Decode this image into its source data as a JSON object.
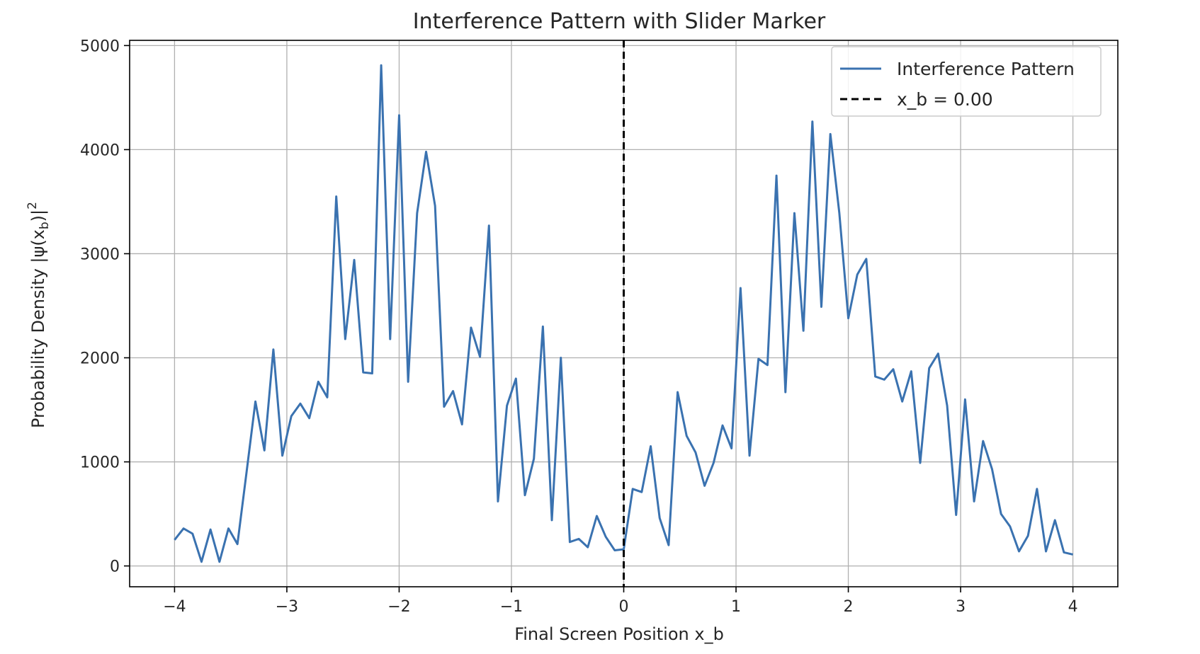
{
  "chart_data": {
    "type": "line",
    "title": "Interference Pattern with Slider Marker",
    "xlabel": "Final Screen Position x_b",
    "ylabel_prefix": "Probability Density |ψ(x",
    "ylabel_sub": "b",
    "ylabel_suffix": ")|",
    "ylabel_sup": "2",
    "xlim": [
      -4.4,
      4.4
    ],
    "ylim": [
      -200,
      5050
    ],
    "xticks": [
      -4,
      -3,
      -2,
      -1,
      0,
      1,
      2,
      3,
      4
    ],
    "xtick_labels": [
      "−4",
      "−3",
      "−2",
      "−1",
      "0",
      "1",
      "2",
      "3",
      "4"
    ],
    "yticks": [
      0,
      1000,
      2000,
      3000,
      4000,
      5000
    ],
    "ytick_labels": [
      "0",
      "1000",
      "2000",
      "3000",
      "4000",
      "5000"
    ],
    "grid": true,
    "legend_position": "top-right",
    "series": [
      {
        "name": "Interference Pattern",
        "color": "#3a72b0",
        "style": "solid",
        "x": [
          -4.0,
          -3.92,
          -3.84,
          -3.76,
          -3.68,
          -3.6,
          -3.52,
          -3.44,
          -3.36,
          -3.28,
          -3.2,
          -3.12,
          -3.04,
          -2.96,
          -2.88,
          -2.8,
          -2.72,
          -2.64,
          -2.56,
          -2.48,
          -2.4,
          -2.32,
          -2.24,
          -2.16,
          -2.08,
          -2.0,
          -1.92,
          -1.84,
          -1.76,
          -1.68,
          -1.6,
          -1.52,
          -1.44,
          -1.36,
          -1.28,
          -1.2,
          -1.12,
          -1.04,
          -0.96,
          -0.88,
          -0.8,
          -0.72,
          -0.64,
          -0.56,
          -0.48,
          -0.4,
          -0.32,
          -0.24,
          -0.16,
          -0.08,
          0.0,
          0.08,
          0.16,
          0.24,
          0.32,
          0.4,
          0.48,
          0.56,
          0.64,
          0.72,
          0.8,
          0.88,
          0.96,
          1.04,
          1.12,
          1.2,
          1.28,
          1.36,
          1.44,
          1.52,
          1.6,
          1.68,
          1.76,
          1.84,
          1.92,
          2.0,
          2.08,
          2.16,
          2.24,
          2.32,
          2.4,
          2.48,
          2.56,
          2.64,
          2.72,
          2.8,
          2.88,
          2.96,
          3.04,
          3.12,
          3.2,
          3.28,
          3.36,
          3.44,
          3.52,
          3.6,
          3.68,
          3.76,
          3.84,
          3.92,
          4.0
        ],
        "y": [
          250,
          360,
          310,
          40,
          350,
          40,
          360,
          210,
          890,
          1580,
          1110,
          2080,
          1060,
          1440,
          1560,
          1420,
          1770,
          1620,
          3550,
          2180,
          2940,
          1860,
          1850,
          4810,
          2180,
          4330,
          1770,
          3390,
          3980,
          3460,
          1530,
          1680,
          1360,
          2290,
          2010,
          3270,
          620,
          1540,
          1800,
          680,
          1030,
          2300,
          440,
          2000,
          230,
          260,
          180,
          480,
          280,
          150,
          160,
          740,
          710,
          1150,
          460,
          200,
          1670,
          1250,
          1090,
          770,
          990,
          1350,
          1130,
          2670,
          1060,
          1990,
          1930,
          3750,
          1670,
          3390,
          2260,
          4270,
          2490,
          4150,
          3390,
          2380,
          2800,
          2950,
          1820,
          1790,
          1890,
          1580,
          1870,
          990,
          1900,
          2040,
          1540,
          490,
          1600,
          620,
          1200,
          930,
          500,
          380,
          140,
          290,
          740,
          140,
          440,
          130,
          110
        ]
      },
      {
        "name": "x_b = 0.00",
        "color": "#000000",
        "style": "dashed",
        "vline_x": 0
      }
    ]
  }
}
